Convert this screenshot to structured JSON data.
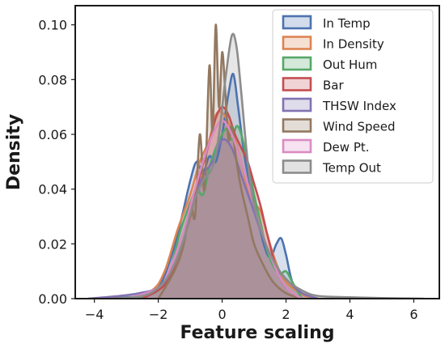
{
  "chart_data": {
    "type": "area",
    "title": "",
    "xlabel": "Feature scaling",
    "ylabel": "Density",
    "xlim": [
      -4.6,
      6.8
    ],
    "ylim": [
      0,
      0.107
    ],
    "xticks": [
      -4,
      -2,
      0,
      2,
      4,
      6
    ],
    "xtick_labels": [
      "−4",
      "−2",
      "0",
      "2",
      "4",
      "6"
    ],
    "yticks": [
      0.0,
      0.02,
      0.04,
      0.06,
      0.08,
      0.1
    ],
    "ytick_labels": [
      "0.00",
      "0.02",
      "0.04",
      "0.06",
      "0.08",
      "0.10"
    ],
    "grid": false,
    "legend_position": "top-right",
    "series": [
      {
        "name": "In Temp",
        "color": "#4c72b0",
        "x": [
          -4.0,
          -2.5,
          -2.0,
          -1.6,
          -1.3,
          -1.0,
          -0.8,
          -0.6,
          -0.4,
          -0.2,
          0.0,
          0.2,
          0.35,
          0.5,
          0.7,
          0.9,
          1.1,
          1.3,
          1.5,
          1.7,
          1.85,
          2.0,
          2.2,
          2.5,
          3.0
        ],
        "y": [
          0.0,
          0.001,
          0.004,
          0.015,
          0.028,
          0.043,
          0.05,
          0.046,
          0.052,
          0.05,
          0.06,
          0.075,
          0.082,
          0.07,
          0.052,
          0.04,
          0.03,
          0.02,
          0.015,
          0.02,
          0.022,
          0.016,
          0.006,
          0.002,
          0.0
        ]
      },
      {
        "name": "In Density",
        "color": "#dd8452",
        "x": [
          -3.0,
          -2.2,
          -1.8,
          -1.4,
          -1.0,
          -0.7,
          -0.4,
          -0.2,
          0.0,
          0.2,
          0.4,
          0.6,
          0.8,
          1.0,
          1.2,
          1.4,
          1.6,
          1.8,
          2.0,
          2.3,
          2.6,
          3.0
        ],
        "y": [
          0.0,
          0.003,
          0.01,
          0.025,
          0.038,
          0.05,
          0.058,
          0.067,
          0.068,
          0.064,
          0.058,
          0.05,
          0.04,
          0.035,
          0.032,
          0.024,
          0.016,
          0.01,
          0.006,
          0.003,
          0.001,
          0.0
        ]
      },
      {
        "name": "Out Hum",
        "color": "#55a868",
        "x": [
          -2.8,
          -2.0,
          -1.6,
          -1.3,
          -1.0,
          -0.8,
          -0.6,
          -0.4,
          -0.2,
          0.0,
          0.15,
          0.3,
          0.45,
          0.6,
          0.8,
          1.0,
          1.2,
          1.4,
          1.6,
          1.8,
          2.0,
          2.2,
          2.5
        ],
        "y": [
          0.0,
          0.003,
          0.012,
          0.025,
          0.035,
          0.04,
          0.038,
          0.048,
          0.055,
          0.06,
          0.062,
          0.058,
          0.063,
          0.06,
          0.05,
          0.038,
          0.028,
          0.018,
          0.012,
          0.009,
          0.01,
          0.006,
          0.0
        ]
      },
      {
        "name": "Bar",
        "color": "#c44e52",
        "x": [
          -2.5,
          -1.8,
          -1.4,
          -1.0,
          -0.7,
          -0.4,
          -0.2,
          0.0,
          0.2,
          0.4,
          0.6,
          0.8,
          1.0,
          1.2,
          1.4,
          1.6,
          1.8,
          2.1,
          2.5
        ],
        "y": [
          0.0,
          0.005,
          0.015,
          0.03,
          0.045,
          0.057,
          0.066,
          0.07,
          0.067,
          0.06,
          0.055,
          0.05,
          0.042,
          0.034,
          0.024,
          0.015,
          0.008,
          0.003,
          0.0
        ]
      },
      {
        "name": "THSW Index",
        "color": "#8172b2",
        "x": [
          -4.2,
          -3.2,
          -2.6,
          -2.0,
          -1.6,
          -1.2,
          -0.9,
          -0.6,
          -0.3,
          0.0,
          0.3,
          0.6,
          0.9,
          1.2,
          1.5,
          1.8,
          2.1,
          2.5,
          3.0
        ],
        "y": [
          0.0,
          0.001,
          0.002,
          0.004,
          0.01,
          0.022,
          0.035,
          0.045,
          0.05,
          0.058,
          0.055,
          0.045,
          0.035,
          0.025,
          0.016,
          0.01,
          0.006,
          0.002,
          0.0
        ]
      },
      {
        "name": "Wind Speed",
        "color": "#937860",
        "x": [
          -2.0,
          -1.5,
          -1.2,
          -1.0,
          -0.85,
          -0.7,
          -0.55,
          -0.4,
          -0.3,
          -0.2,
          -0.1,
          0.0,
          0.1,
          0.2,
          0.3,
          0.45,
          0.6,
          0.8,
          1.0,
          1.3,
          1.6,
          2.0,
          2.5
        ],
        "y": [
          0.0,
          0.01,
          0.02,
          0.035,
          0.03,
          0.06,
          0.04,
          0.085,
          0.06,
          0.1,
          0.07,
          0.09,
          0.075,
          0.058,
          0.063,
          0.05,
          0.04,
          0.03,
          0.02,
          0.012,
          0.006,
          0.002,
          0.0
        ]
      },
      {
        "name": "Dew Pt.",
        "color": "#da8bc3",
        "x": [
          -3.0,
          -2.0,
          -1.6,
          -1.2,
          -0.9,
          -0.6,
          -0.3,
          0.0,
          0.3,
          0.6,
          0.9,
          1.2,
          1.5,
          1.8,
          2.1,
          2.5
        ],
        "y": [
          0.0,
          0.004,
          0.012,
          0.025,
          0.038,
          0.05,
          0.06,
          0.065,
          0.06,
          0.05,
          0.038,
          0.026,
          0.016,
          0.008,
          0.003,
          0.0
        ]
      },
      {
        "name": "Temp Out",
        "color": "#8c8c8c",
        "x": [
          -3.5,
          -2.5,
          -2.0,
          -1.6,
          -1.2,
          -0.9,
          -0.6,
          -0.3,
          -0.1,
          0.1,
          0.3,
          0.45,
          0.6,
          0.8,
          1.0,
          1.3,
          1.6,
          2.0,
          2.5,
          3.0,
          4.0,
          5.0,
          6.3
        ],
        "y": [
          0.0,
          0.001,
          0.004,
          0.01,
          0.022,
          0.035,
          0.043,
          0.048,
          0.06,
          0.08,
          0.096,
          0.092,
          0.075,
          0.05,
          0.034,
          0.022,
          0.014,
          0.007,
          0.003,
          0.001,
          0.0005,
          0.0002,
          0.0
        ]
      }
    ]
  }
}
